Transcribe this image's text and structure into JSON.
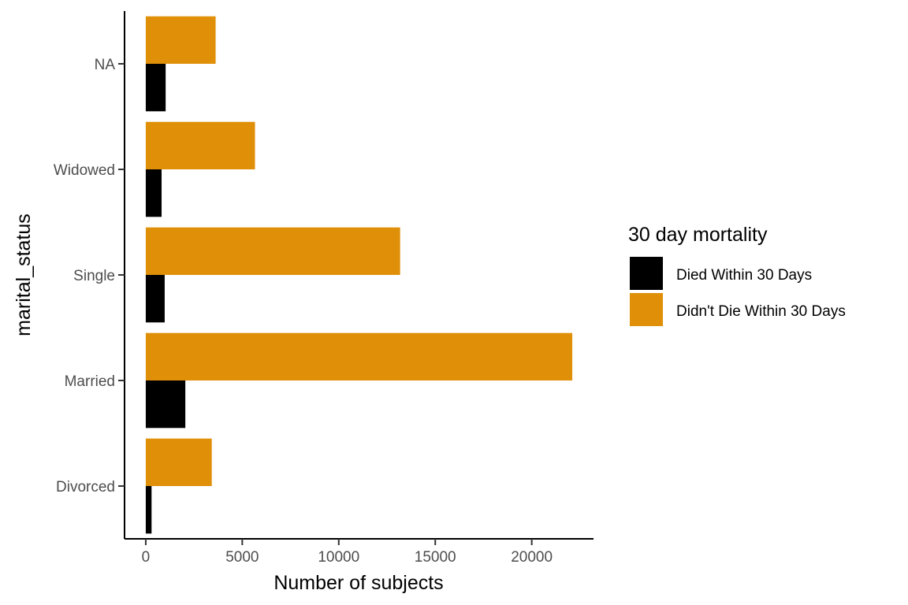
{
  "chart_data": {
    "type": "bar",
    "orientation": "horizontal",
    "categories": [
      "Divorced",
      "Married",
      "Single",
      "Widowed",
      "NA"
    ],
    "series": [
      {
        "name": "Died Within 30 Days",
        "color": "#000000",
        "values": [
          300,
          2050,
          980,
          820,
          1030
        ]
      },
      {
        "name": "Didn't Die Within 30 Days",
        "color": "#E08F08",
        "values": [
          3420,
          22100,
          13180,
          5660,
          3620
        ]
      }
    ],
    "xlabel": "Number of subjects",
    "ylabel": "marital_status",
    "xlim": [
      -1100,
      23200
    ],
    "xticks": [
      "0",
      "5000",
      "10000",
      "15000",
      "20000"
    ],
    "legend": {
      "title": "30 day mortality",
      "position": "right"
    },
    "grid": false
  }
}
